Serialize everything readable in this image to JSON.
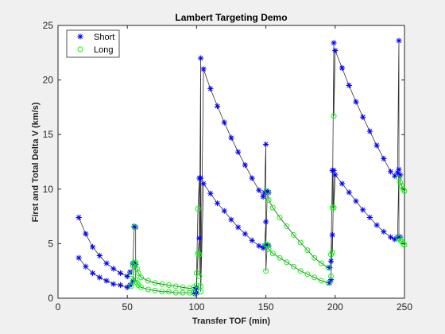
{
  "chart_data": {
    "type": "scatter",
    "title": "Lambert Targeting Demo",
    "xlabel": "Transfer TOF (min)",
    "ylabel": "First and Total Delta V (km/s)",
    "xlim": [
      0,
      250
    ],
    "ylim": [
      0,
      25
    ],
    "xticks": [
      0,
      50,
      100,
      150,
      200,
      250
    ],
    "yticks": [
      0,
      5,
      10,
      15,
      20,
      25
    ],
    "grid": false,
    "legend_position": "top-left",
    "series": [
      {
        "name": "Short",
        "marker": "asterisk",
        "color": "#0000ff",
        "x": [
          15,
          20,
          25,
          30,
          35,
          40,
          45,
          50,
          52,
          54,
          55,
          56,
          99,
          100,
          102,
          103,
          105,
          110,
          115,
          120,
          125,
          130,
          135,
          140,
          145,
          148,
          149,
          150,
          151,
          152,
          196,
          197,
          198,
          199,
          200,
          205,
          210,
          215,
          220,
          225,
          230,
          235,
          240,
          243,
          245,
          246,
          247
        ],
        "y": [
          7.4,
          5.9,
          4.7,
          3.9,
          3.2,
          2.7,
          2.3,
          2.0,
          2.4,
          3.2,
          6.6,
          6.5,
          0.8,
          1.0,
          11.0,
          22.0,
          21.0,
          19.2,
          17.6,
          16.1,
          14.7,
          13.4,
          12.2,
          11.0,
          9.9,
          9.3,
          9.7,
          14.1,
          9.8,
          9.7,
          2.8,
          3.4,
          11.7,
          23.4,
          22.7,
          21.1,
          19.5,
          18.0,
          16.6,
          15.3,
          14.0,
          12.8,
          11.6,
          11.2,
          11.5,
          23.6,
          11.3
        ],
        "y_first": [
          3.7,
          2.9,
          2.3,
          1.9,
          1.6,
          1.3,
          1.2,
          1.0,
          1.2,
          1.6,
          3.2,
          3.1,
          0.4,
          0.5,
          5.5,
          11.0,
          10.5,
          9.6,
          8.7,
          8.0,
          7.2,
          6.5,
          5.9,
          5.3,
          4.8,
          4.6,
          4.8,
          7.0,
          4.9,
          4.8,
          1.4,
          1.7,
          5.8,
          11.7,
          11.3,
          10.5,
          9.7,
          8.9,
          8.1,
          7.4,
          6.7,
          6.1,
          5.6,
          5.4,
          5.6,
          11.8,
          5.6
        ]
      },
      {
        "name": "Long",
        "marker": "circle",
        "color": "#00ff00",
        "x": [
          53,
          54,
          55,
          56,
          57,
          58,
          60,
          65,
          70,
          75,
          80,
          85,
          90,
          95,
          98,
          100,
          101,
          102,
          103,
          150,
          151,
          152,
          155,
          160,
          165,
          170,
          175,
          180,
          185,
          190,
          195,
          197,
          198,
          199,
          246,
          247,
          248,
          249,
          250
        ],
        "y": [
          2.2,
          3.0,
          6.5,
          3.3,
          2.7,
          2.3,
          1.9,
          1.6,
          1.4,
          1.3,
          1.2,
          1.1,
          1.0,
          0.9,
          1.0,
          2.3,
          8.2,
          4.0,
          1.1,
          4.9,
          9.8,
          9.0,
          8.3,
          7.4,
          6.6,
          5.8,
          5.1,
          4.4,
          3.7,
          3.2,
          2.8,
          4.0,
          8.3,
          16.7,
          11.0,
          10.6,
          10.3,
          10.0,
          9.8
        ],
        "y_first": [
          1.1,
          1.5,
          3.2,
          1.7,
          1.4,
          1.2,
          1.0,
          0.8,
          0.7,
          0.6,
          0.6,
          0.5,
          0.5,
          0.5,
          0.5,
          1.2,
          4.1,
          2.0,
          0.6,
          2.5,
          4.9,
          4.5,
          4.1,
          3.7,
          3.3,
          2.9,
          2.5,
          2.2,
          1.9,
          1.6,
          1.4,
          2.0,
          4.2,
          8.3,
          5.5,
          5.3,
          5.2,
          5.0,
          4.9
        ]
      }
    ]
  }
}
